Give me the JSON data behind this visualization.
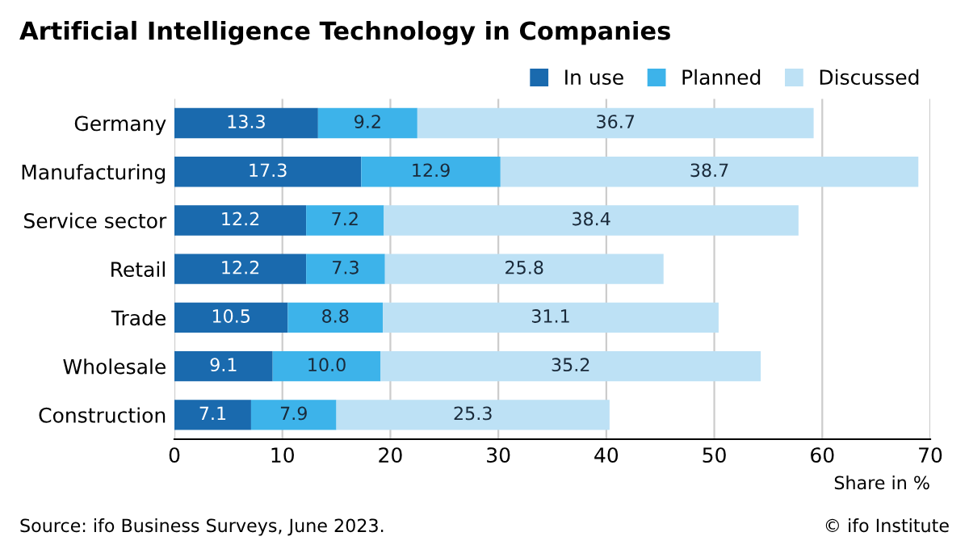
{
  "chart_data": {
    "type": "bar",
    "orientation": "horizontal",
    "stacked": true,
    "title": "Artificial Intelligence Technology in Companies",
    "categories": [
      "Germany",
      "Manufacturing",
      "Service sector",
      "Retail",
      "Trade",
      "Wholesale",
      "Construction"
    ],
    "series": [
      {
        "name": "In use",
        "color": "#1a6aae",
        "values": [
          13.3,
          17.3,
          12.2,
          12.2,
          10.5,
          9.1,
          7.1
        ],
        "value_labels": [
          "13.3",
          "17.3",
          "12.2",
          "12.2",
          "10.5",
          "9.1",
          "7.1"
        ]
      },
      {
        "name": "Planned",
        "color": "#3db3ea",
        "values": [
          9.2,
          12.9,
          7.2,
          7.3,
          8.8,
          10.0,
          7.9
        ],
        "value_labels": [
          "9.2",
          "12.9",
          "7.2",
          "7.3",
          "8.8",
          "10.0",
          "7.9"
        ]
      },
      {
        "name": "Discussed",
        "color": "#bde1f5",
        "values": [
          36.7,
          38.7,
          38.4,
          25.8,
          31.1,
          35.2,
          25.3
        ],
        "value_labels": [
          "36.7",
          "38.7",
          "38.4",
          "25.8",
          "31.1",
          "35.2",
          "25.3"
        ]
      }
    ],
    "xlim": [
      0,
      70
    ],
    "xticks": [
      0,
      10,
      20,
      30,
      40,
      50,
      60,
      70
    ],
    "xlabel": "Share in %",
    "grid": "x",
    "legend": "top right",
    "annotations": [
      "Source: ifo Business Surveys, June 2023.",
      "© ifo Institute"
    ]
  }
}
